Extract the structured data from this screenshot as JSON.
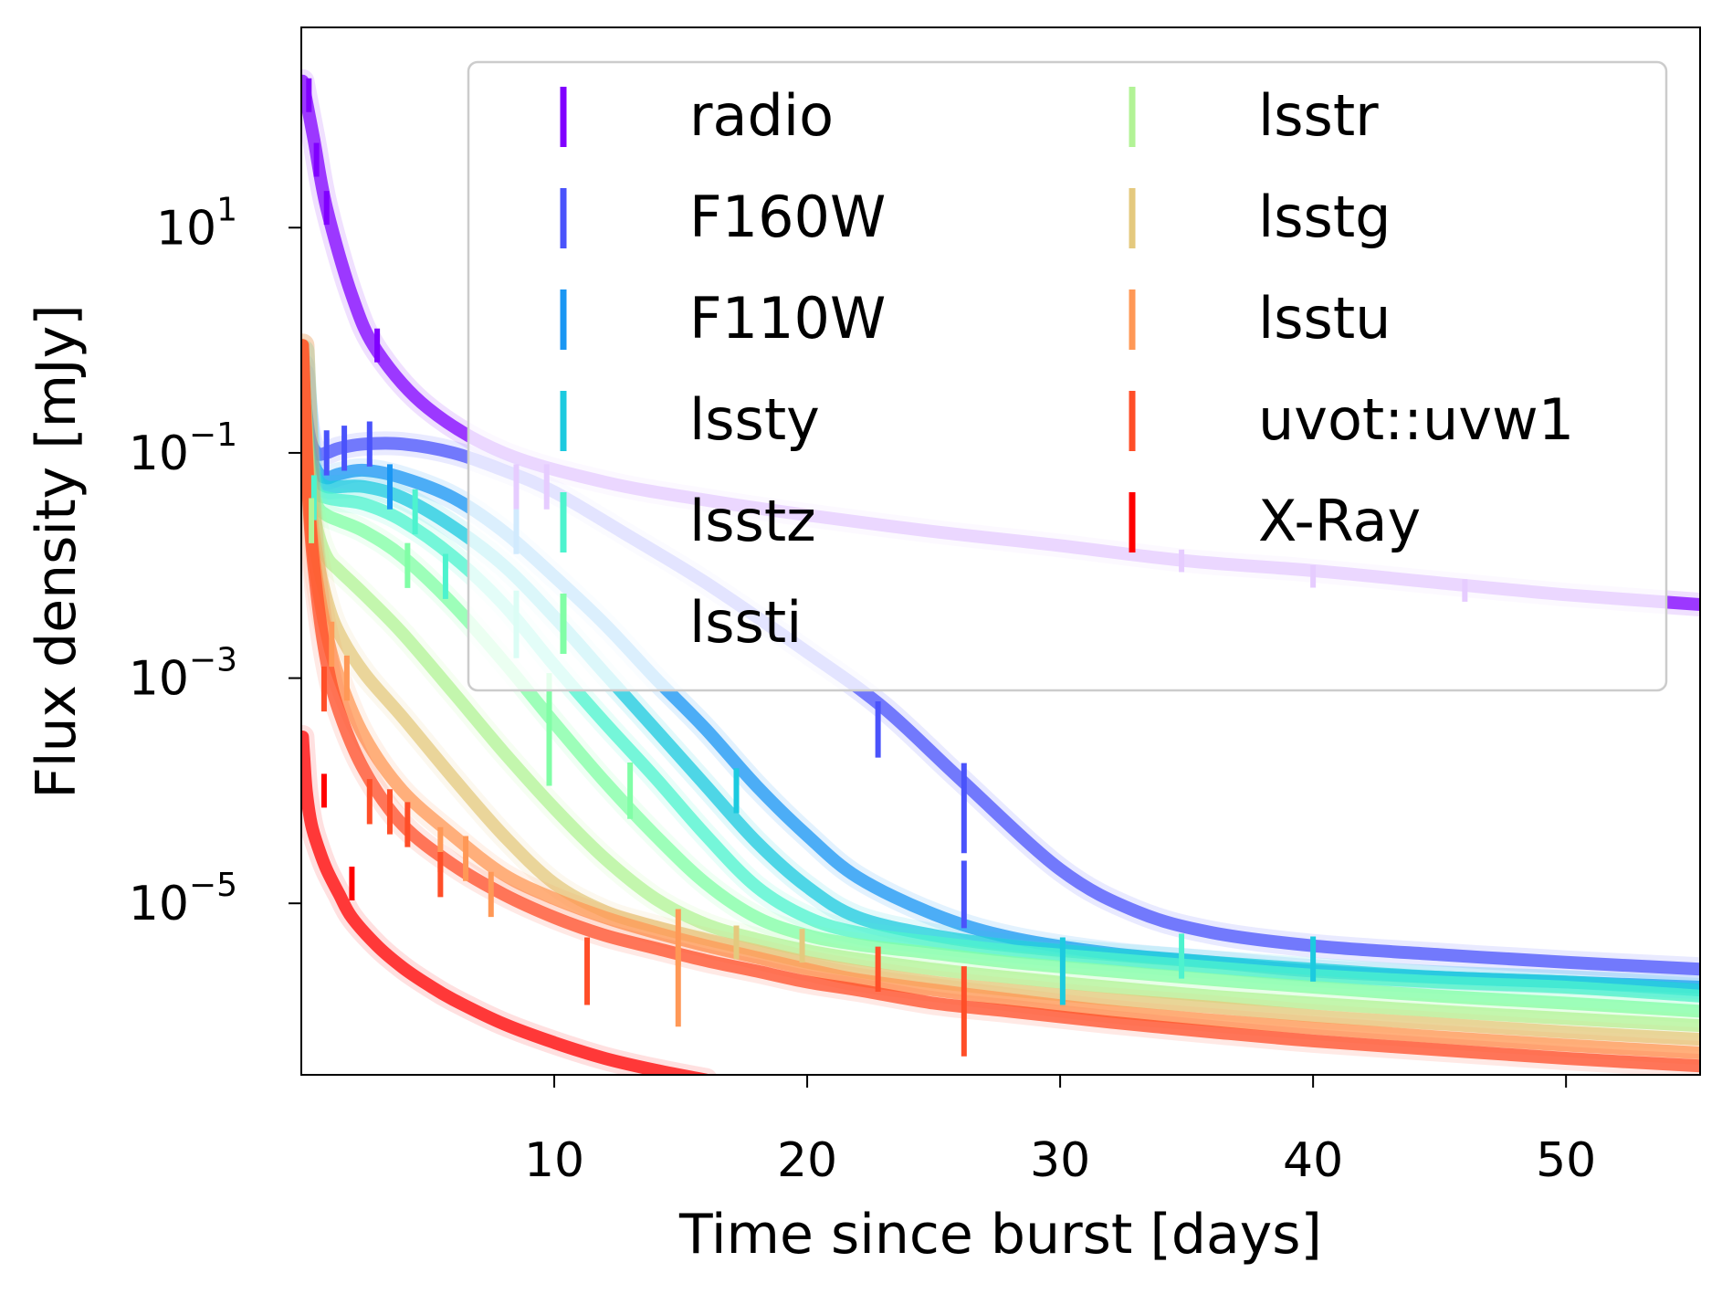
{
  "chart_data": {
    "type": "line",
    "xlabel": "Time since burst [days]",
    "ylabel": "Flux density [mJy]",
    "xlim": [
      0,
      55.3
    ],
    "ylim": [
      3e-07,
      600
    ],
    "yscale": "log",
    "grid": false,
    "legend_placement": "top-right",
    "legend_columns": 2,
    "x_ticks": [
      10,
      20,
      30,
      40,
      50
    ],
    "x_tick_labels": [
      "10",
      "20",
      "30",
      "40",
      "50"
    ],
    "y_ticks": [
      10,
      0.1,
      0.001,
      1e-05
    ],
    "y_tick_labels": [
      {
        "base": "10",
        "exp": "1"
      },
      {
        "base": "10",
        "exp": "−1"
      },
      {
        "base": "10",
        "exp": "−3"
      },
      {
        "base": "10",
        "exp": "−5"
      }
    ],
    "series": [
      {
        "name": "radio",
        "color": "#8000ff",
        "x": [
          0.05,
          0.5,
          1,
          2,
          3,
          5,
          8,
          12,
          16,
          20,
          25,
          30,
          35,
          40,
          45,
          50,
          55.3
        ],
        "y": [
          200,
          60,
          15,
          2.5,
          0.8,
          0.25,
          0.1,
          0.055,
          0.038,
          0.028,
          0.02,
          0.015,
          0.011,
          0.009,
          0.007,
          0.0055,
          0.0045
        ],
        "points": [
          [
            0.3,
            150,
            0.3
          ],
          [
            0.6,
            40,
            0.3
          ],
          [
            1,
            15,
            0.3
          ],
          [
            3,
            0.9,
            0.3
          ],
          [
            8.5,
            0.05,
            0.4
          ],
          [
            9.7,
            0.05,
            0.4
          ],
          [
            34.8,
            0.011,
            0.2
          ],
          [
            40,
            0.008,
            0.2
          ],
          [
            46,
            0.006,
            0.2
          ]
        ]
      },
      {
        "name": "F160W",
        "color": "#4a53fb",
        "x": [
          0.05,
          0.3,
          0.6,
          1,
          1.5,
          2.5,
          4,
          6,
          8,
          10,
          13,
          16,
          20,
          23,
          26,
          30,
          33,
          36,
          40,
          45,
          50,
          55.3
        ],
        "y": [
          0.5,
          0.15,
          0.1,
          0.1,
          0.11,
          0.12,
          0.12,
          0.1,
          0.07,
          0.045,
          0.018,
          0.007,
          0.0017,
          0.00055,
          0.00013,
          2e-05,
          8.5e-06,
          5.5e-06,
          4.2e-06,
          3.5e-06,
          3e-06,
          2.6e-06
        ],
        "points": [
          [
            1,
            0.1,
            0.4
          ],
          [
            1.7,
            0.11,
            0.4
          ],
          [
            2.7,
            0.12,
            0.4
          ],
          [
            22.8,
            0.00035,
            0.5
          ],
          [
            26.2,
            7e-05,
            0.8
          ],
          [
            26.2,
            1.2e-05,
            0.6
          ]
        ]
      },
      {
        "name": "F110W",
        "color": "#1996f3",
        "x": [
          0.05,
          0.3,
          0.6,
          1,
          1.5,
          2.5,
          4,
          6,
          8,
          10,
          12,
          14,
          16,
          18,
          20,
          22,
          25,
          28,
          32,
          36,
          40,
          45,
          50,
          55.3
        ],
        "y": [
          0.6,
          0.12,
          0.07,
          0.06,
          0.065,
          0.07,
          0.06,
          0.04,
          0.02,
          0.008,
          0.003,
          0.001,
          0.00035,
          0.00011,
          4e-05,
          1.7e-05,
          8e-06,
          5e-06,
          3.6e-06,
          3e-06,
          2.5e-06,
          2.2e-06,
          2e-06,
          1.8e-06
        ],
        "points": [
          [
            3.5,
            0.05,
            0.4
          ],
          [
            8.5,
            0.02,
            0.4
          ]
        ]
      },
      {
        "name": "lssty",
        "color": "#1ccadf",
        "x": [
          0.05,
          0.3,
          0.6,
          1,
          1.5,
          2.5,
          4,
          6,
          8,
          10,
          12,
          14,
          16,
          18,
          20,
          22,
          25,
          28,
          32,
          36,
          40,
          45,
          50,
          55.3
        ],
        "y": [
          0.8,
          0.1,
          0.06,
          0.05,
          0.05,
          0.05,
          0.04,
          0.022,
          0.01,
          0.0035,
          0.0011,
          0.00035,
          0.00011,
          3.5e-05,
          1.4e-05,
          7.5e-06,
          5.2e-06,
          4.2e-06,
          3.5e-06,
          3e-06,
          2.6e-06,
          2.2e-06,
          2e-06,
          1.7e-06
        ],
        "points": [
          [
            17.2,
            0.0001,
            0.4
          ],
          [
            30.1,
            2.5e-06,
            0.6
          ],
          [
            40,
            3.2e-06,
            0.4
          ]
        ]
      },
      {
        "name": "lsstz",
        "color": "#4df3ce",
        "x": [
          0.05,
          0.3,
          0.6,
          1,
          1.5,
          2.5,
          4,
          6,
          8,
          10,
          12,
          14,
          16,
          18,
          20,
          22,
          25,
          28,
          32,
          36,
          40,
          45,
          50,
          55.3
        ],
        "y": [
          0.8,
          0.08,
          0.045,
          0.04,
          0.038,
          0.035,
          0.025,
          0.012,
          0.0045,
          0.0013,
          0.0004,
          0.00013,
          4e-05,
          1.4e-05,
          7.5e-06,
          5.5e-06,
          4.5e-06,
          3.8e-06,
          3.2e-06,
          2.7e-06,
          2.3e-06,
          2e-06,
          1.8e-06,
          1.5e-06
        ],
        "points": [
          [
            0.5,
            0.04,
            0.4
          ],
          [
            4.5,
            0.03,
            0.4
          ],
          [
            5.7,
            0.008,
            0.4
          ],
          [
            8.5,
            0.003,
            0.6
          ],
          [
            34.8,
            3.4e-06,
            0.4
          ]
        ]
      },
      {
        "name": "lssti",
        "color": "#81fea6",
        "x": [
          0.05,
          0.3,
          0.6,
          1,
          1.5,
          2.5,
          4,
          6,
          8,
          10,
          12,
          14,
          16,
          18,
          20,
          22,
          25,
          28,
          32,
          36,
          40,
          45,
          50,
          55.3
        ],
        "y": [
          0.8,
          0.07,
          0.035,
          0.028,
          0.025,
          0.02,
          0.012,
          0.0045,
          0.0014,
          0.0004,
          0.00012,
          4e-05,
          1.5e-05,
          7.5e-06,
          5.2e-06,
          4.3e-06,
          3.6e-06,
          3e-06,
          2.5e-06,
          2.1e-06,
          1.8e-06,
          1.5e-06,
          1.3e-06,
          1.1e-06
        ],
        "points": [
          [
            4.2,
            0.01,
            0.4
          ],
          [
            9.8,
            0.00035,
            1
          ],
          [
            13,
            0.0001,
            0.5
          ]
        ]
      },
      {
        "name": "lsstr",
        "color": "#b2f396",
        "x": [
          0.05,
          0.3,
          0.6,
          1,
          1.5,
          2.5,
          4,
          6,
          8,
          10,
          12,
          14,
          16,
          18,
          20,
          22,
          25,
          28,
          32,
          36,
          40,
          45,
          50,
          55.3
        ],
        "y": [
          0.9,
          0.06,
          0.022,
          0.012,
          0.009,
          0.0055,
          0.0025,
          0.00075,
          0.00022,
          7e-05,
          2.5e-05,
          1.1e-05,
          6.5e-06,
          4.8e-06,
          3.8e-06,
          3.2e-06,
          2.6e-06,
          2.2e-06,
          1.8e-06,
          1.5e-06,
          1.3e-06,
          1.1e-06,
          9.5e-07,
          8.2e-07
        ],
        "points": [
          [
            0.4,
            0.025,
            0.4
          ]
        ]
      },
      {
        "name": "lsstg",
        "color": "#e4c97e",
        "x": [
          0.05,
          0.3,
          0.6,
          1,
          1.5,
          2.5,
          4,
          6,
          8,
          10,
          12,
          14,
          16,
          18,
          20,
          22,
          25,
          28,
          32,
          36,
          40,
          45,
          50,
          55.3
        ],
        "y": [
          0.9,
          0.05,
          0.013,
          0.005,
          0.0025,
          0.0011,
          0.00045,
          0.00013,
          4e-05,
          1.5e-05,
          8.5e-06,
          6.2e-06,
          4.8e-06,
          3.8e-06,
          3e-06,
          2.5e-06,
          2e-06,
          1.7e-06,
          1.4e-06,
          1.2e-06,
          1e-06,
          8.5e-07,
          7.2e-07,
          6.2e-07
        ],
        "points": [
          [
            17.2,
            4.5e-06,
            0.3
          ],
          [
            19.8,
            4.2e-06,
            0.3
          ]
        ]
      },
      {
        "name": "lsstu",
        "color": "#ff9856",
        "x": [
          0.05,
          0.3,
          0.6,
          1,
          1.5,
          2.5,
          4,
          6,
          8,
          10,
          12,
          14,
          16,
          18,
          20,
          22,
          25,
          28,
          32,
          36,
          40,
          45,
          50,
          55.3
        ],
        "y": [
          0.9,
          0.04,
          0.008,
          0.0025,
          0.001,
          0.0003,
          0.0001,
          4e-05,
          1.8e-05,
          1.1e-05,
          7.5e-06,
          5.5e-06,
          4.2e-06,
          3.3e-06,
          2.6e-06,
          2.1e-06,
          1.7e-06,
          1.4e-06,
          1.1e-06,
          9.2e-07,
          7.8e-07,
          6.5e-07,
          5.5e-07,
          4.7e-07
        ],
        "points": [
          [
            1.2,
            0.002,
            0.4
          ],
          [
            1.8,
            0.001,
            0.4
          ],
          [
            5.5,
            3e-05,
            0.4
          ],
          [
            6.5,
            2.5e-05,
            0.4
          ],
          [
            7.5,
            1.2e-05,
            0.4
          ],
          [
            14.9,
            5e-06,
            0.5
          ],
          [
            14.9,
            1.8e-06,
            0.7
          ]
        ]
      },
      {
        "name": "uvot::uvw1",
        "color": "#ff4e28",
        "x": [
          0.05,
          0.3,
          0.6,
          1,
          1.5,
          2.5,
          4,
          6,
          8,
          10,
          12,
          14,
          16,
          18,
          20,
          22,
          25,
          28,
          32,
          36,
          40,
          45,
          50,
          55.3
        ],
        "y": [
          0.9,
          0.035,
          0.006,
          0.0014,
          0.0005,
          0.00015,
          5e-05,
          2.2e-05,
          1.2e-05,
          7.5e-06,
          5.2e-06,
          4e-06,
          3.1e-06,
          2.5e-06,
          2e-06,
          1.7e-06,
          1.3e-06,
          1.1e-06,
          8.8e-07,
          7.2e-07,
          6e-07,
          5e-07,
          4.2e-07,
          3.6e-07
        ],
        "points": [
          [
            0.9,
            0.0008,
            0.4
          ],
          [
            2.7,
            8e-05,
            0.4
          ],
          [
            3.5,
            6.5e-05,
            0.4
          ],
          [
            4.2,
            5e-05,
            0.4
          ],
          [
            5.5,
            1.8e-05,
            0.4
          ],
          [
            11.3,
            2.5e-06,
            0.6
          ],
          [
            22.8,
            2.6e-06,
            0.4
          ],
          [
            26.2,
            1.1e-06,
            0.8
          ]
        ]
      },
      {
        "name": "X-Ray",
        "color": "#ff0000",
        "x": [
          0.05,
          0.1,
          0.2,
          0.4,
          0.7,
          1,
          1.5,
          2,
          3,
          4,
          5,
          6,
          8,
          10,
          12,
          14,
          16
        ],
        "y": [
          0.0003,
          0.0002,
          0.0001,
          5e-05,
          3e-05,
          2e-05,
          1.2e-05,
          7.5e-06,
          4.2e-06,
          2.7e-06,
          1.9e-06,
          1.4e-06,
          8.5e-07,
          5.8e-07,
          4.2e-07,
          3.3e-07,
          2.7e-07
        ],
        "points": [
          [
            0.9,
            0.0001,
            0.3
          ],
          [
            2,
            1.5e-05,
            0.3
          ]
        ]
      }
    ]
  }
}
